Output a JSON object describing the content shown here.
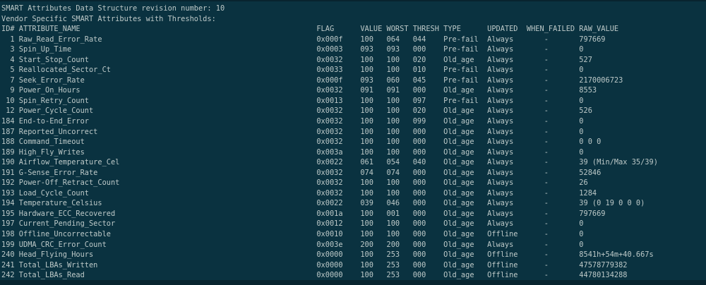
{
  "terminal": {
    "colors": {
      "background": "#0a3240",
      "text": "#bdc9c8",
      "edge": "#08242f"
    },
    "title_line": "SMART Attributes Data Structure revision number: 10",
    "subtitle_line": "Vendor Specific SMART Attributes with Thresholds:",
    "columns": [
      "ID#",
      "ATTRIBUTE_NAME",
      "FLAG",
      "VALUE",
      "WORST",
      "THRESH",
      "TYPE",
      "UPDATED",
      "WHEN_FAILED",
      "RAW_VALUE"
    ],
    "rows": [
      {
        "id": "1",
        "name": "Raw_Read_Error_Rate",
        "flag": "0x000f",
        "value": "100",
        "worst": "064",
        "thresh": "044",
        "type": "Pre-fail",
        "updated": "Always",
        "when_failed": "-",
        "raw_value": "797669"
      },
      {
        "id": "3",
        "name": "Spin_Up_Time",
        "flag": "0x0003",
        "value": "093",
        "worst": "093",
        "thresh": "000",
        "type": "Pre-fail",
        "updated": "Always",
        "when_failed": "-",
        "raw_value": "0"
      },
      {
        "id": "4",
        "name": "Start_Stop_Count",
        "flag": "0x0032",
        "value": "100",
        "worst": "100",
        "thresh": "020",
        "type": "Old_age",
        "updated": "Always",
        "when_failed": "-",
        "raw_value": "527"
      },
      {
        "id": "5",
        "name": "Reallocated_Sector_Ct",
        "flag": "0x0033",
        "value": "100",
        "worst": "100",
        "thresh": "010",
        "type": "Pre-fail",
        "updated": "Always",
        "when_failed": "-",
        "raw_value": "0"
      },
      {
        "id": "7",
        "name": "Seek_Error_Rate",
        "flag": "0x000f",
        "value": "093",
        "worst": "060",
        "thresh": "045",
        "type": "Pre-fail",
        "updated": "Always",
        "when_failed": "-",
        "raw_value": "2170006723"
      },
      {
        "id": "9",
        "name": "Power_On_Hours",
        "flag": "0x0032",
        "value": "091",
        "worst": "091",
        "thresh": "000",
        "type": "Old_age",
        "updated": "Always",
        "when_failed": "-",
        "raw_value": "8553"
      },
      {
        "id": "10",
        "name": "Spin_Retry_Count",
        "flag": "0x0013",
        "value": "100",
        "worst": "100",
        "thresh": "097",
        "type": "Pre-fail",
        "updated": "Always",
        "when_failed": "-",
        "raw_value": "0"
      },
      {
        "id": "12",
        "name": "Power_Cycle_Count",
        "flag": "0x0032",
        "value": "100",
        "worst": "100",
        "thresh": "020",
        "type": "Old_age",
        "updated": "Always",
        "when_failed": "-",
        "raw_value": "526"
      },
      {
        "id": "184",
        "name": "End-to-End_Error",
        "flag": "0x0032",
        "value": "100",
        "worst": "100",
        "thresh": "099",
        "type": "Old_age",
        "updated": "Always",
        "when_failed": "-",
        "raw_value": "0"
      },
      {
        "id": "187",
        "name": "Reported_Uncorrect",
        "flag": "0x0032",
        "value": "100",
        "worst": "100",
        "thresh": "000",
        "type": "Old_age",
        "updated": "Always",
        "when_failed": "-",
        "raw_value": "0"
      },
      {
        "id": "188",
        "name": "Command_Timeout",
        "flag": "0x0032",
        "value": "100",
        "worst": "100",
        "thresh": "000",
        "type": "Old_age",
        "updated": "Always",
        "when_failed": "-",
        "raw_value": "0 0 0"
      },
      {
        "id": "189",
        "name": "High_Fly_Writes",
        "flag": "0x003a",
        "value": "100",
        "worst": "100",
        "thresh": "000",
        "type": "Old_age",
        "updated": "Always",
        "when_failed": "-",
        "raw_value": "0"
      },
      {
        "id": "190",
        "name": "Airflow_Temperature_Cel",
        "flag": "0x0022",
        "value": "061",
        "worst": "054",
        "thresh": "040",
        "type": "Old_age",
        "updated": "Always",
        "when_failed": "-",
        "raw_value": "39 (Min/Max 35/39)"
      },
      {
        "id": "191",
        "name": "G-Sense_Error_Rate",
        "flag": "0x0032",
        "value": "074",
        "worst": "074",
        "thresh": "000",
        "type": "Old_age",
        "updated": "Always",
        "when_failed": "-",
        "raw_value": "52846"
      },
      {
        "id": "192",
        "name": "Power-Off_Retract_Count",
        "flag": "0x0032",
        "value": "100",
        "worst": "100",
        "thresh": "000",
        "type": "Old_age",
        "updated": "Always",
        "when_failed": "-",
        "raw_value": "26"
      },
      {
        "id": "193",
        "name": "Load_Cycle_Count",
        "flag": "0x0032",
        "value": "100",
        "worst": "100",
        "thresh": "000",
        "type": "Old_age",
        "updated": "Always",
        "when_failed": "-",
        "raw_value": "1284"
      },
      {
        "id": "194",
        "name": "Temperature_Celsius",
        "flag": "0x0022",
        "value": "039",
        "worst": "046",
        "thresh": "000",
        "type": "Old_age",
        "updated": "Always",
        "when_failed": "-",
        "raw_value": "39 (0 19 0 0 0)"
      },
      {
        "id": "195",
        "name": "Hardware_ECC_Recovered",
        "flag": "0x001a",
        "value": "100",
        "worst": "001",
        "thresh": "000",
        "type": "Old_age",
        "updated": "Always",
        "when_failed": "-",
        "raw_value": "797669"
      },
      {
        "id": "197",
        "name": "Current_Pending_Sector",
        "flag": "0x0012",
        "value": "100",
        "worst": "100",
        "thresh": "000",
        "type": "Old_age",
        "updated": "Always",
        "when_failed": "-",
        "raw_value": "0"
      },
      {
        "id": "198",
        "name": "Offline_Uncorrectable",
        "flag": "0x0010",
        "value": "100",
        "worst": "100",
        "thresh": "000",
        "type": "Old_age",
        "updated": "Offline",
        "when_failed": "-",
        "raw_value": "0"
      },
      {
        "id": "199",
        "name": "UDMA_CRC_Error_Count",
        "flag": "0x003e",
        "value": "200",
        "worst": "200",
        "thresh": "000",
        "type": "Old_age",
        "updated": "Always",
        "when_failed": "-",
        "raw_value": "0"
      },
      {
        "id": "240",
        "name": "Head_Flying_Hours",
        "flag": "0x0000",
        "value": "100",
        "worst": "253",
        "thresh": "000",
        "type": "Old_age",
        "updated": "Offline",
        "when_failed": "-",
        "raw_value": "8541h+54m+40.667s"
      },
      {
        "id": "241",
        "name": "Total_LBAs_Written",
        "flag": "0x0000",
        "value": "100",
        "worst": "253",
        "thresh": "000",
        "type": "Old_age",
        "updated": "Offline",
        "when_failed": "-",
        "raw_value": "47578779382"
      },
      {
        "id": "242",
        "name": "Total_LBAs_Read",
        "flag": "0x0000",
        "value": "100",
        "worst": "253",
        "thresh": "000",
        "type": "Old_age",
        "updated": "Offline",
        "when_failed": "-",
        "raw_value": "44780134288"
      }
    ]
  }
}
